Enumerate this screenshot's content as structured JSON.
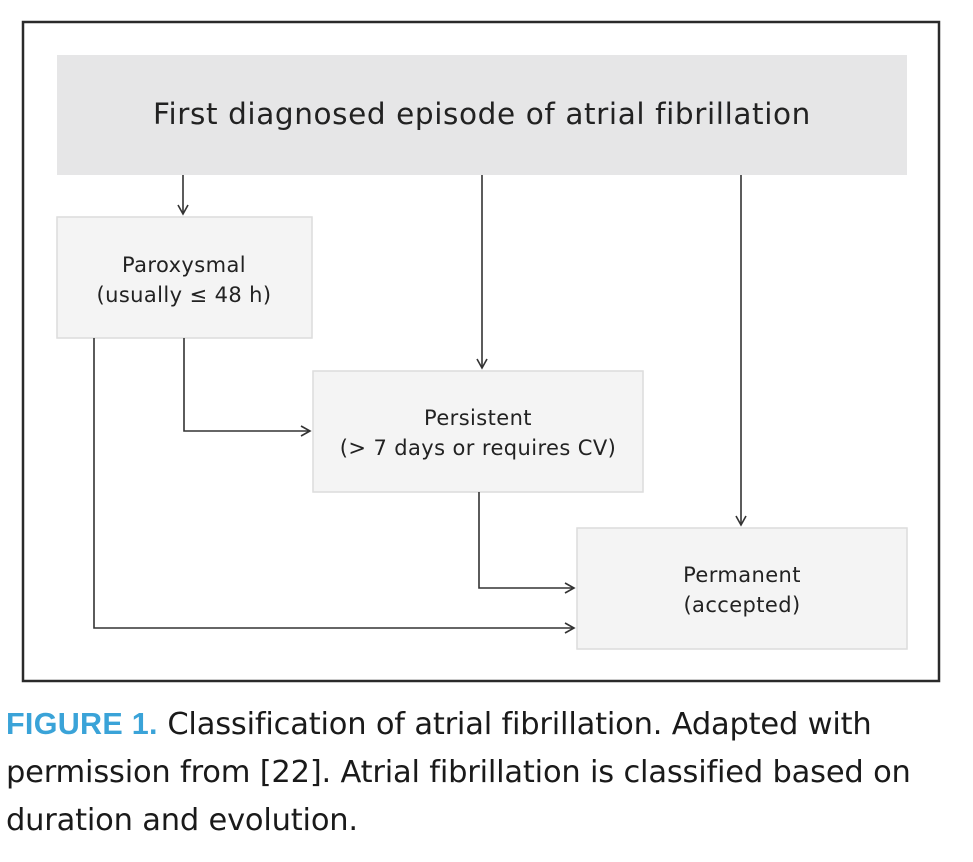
{
  "diagram": {
    "nodes": {
      "first": {
        "lines": [
          "First diagnosed episode of atrial fibrillation"
        ]
      },
      "paroxysmal": {
        "lines": [
          "Paroxysmal",
          "(usually ≤ 48 h)"
        ]
      },
      "persistent": {
        "lines": [
          "Persistent",
          "(> 7 days or requires CV)"
        ]
      },
      "permanent": {
        "lines": [
          "Permanent",
          "(accepted)"
        ]
      }
    },
    "edges": [
      {
        "from": "first",
        "to": "paroxysmal"
      },
      {
        "from": "first",
        "to": "persistent"
      },
      {
        "from": "first",
        "to": "permanent"
      },
      {
        "from": "paroxysmal",
        "to": "persistent"
      },
      {
        "from": "paroxysmal",
        "to": "permanent"
      },
      {
        "from": "persistent",
        "to": "permanent"
      }
    ],
    "colors": {
      "header_fill": "#e6e6e7",
      "box_fill": "#f4f4f4",
      "box_stroke": "#dcdcdc",
      "line": "#333333",
      "accent": "#3aa3d8"
    }
  },
  "caption": {
    "label": "FIGURE 1.",
    "text": " Classification of atrial fibrillation. Adapted with permission from [22]. Atrial fibrillation is classified based on duration and evolution."
  }
}
